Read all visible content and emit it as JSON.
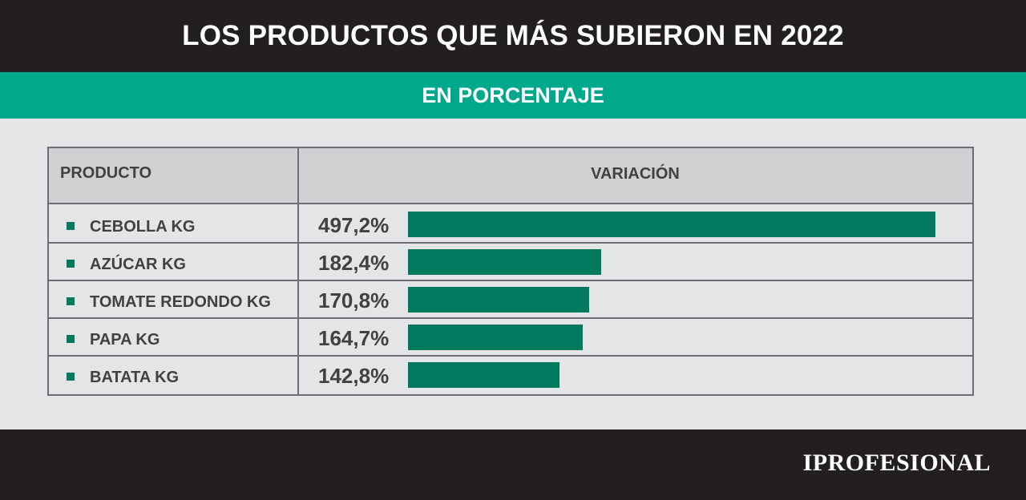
{
  "header": {
    "title": "LOS PRODUCTOS QUE MÁS SUBIERON EN 2022",
    "subtitle": "EN PORCENTAJE"
  },
  "table": {
    "col_product": "PRODUCTO",
    "col_variation": "VARIACIÓN"
  },
  "chart_data": {
    "type": "bar",
    "orientation": "horizontal",
    "title": "LOS PRODUCTOS QUE MÁS SUBIERON EN 2022",
    "subtitle": "EN PORCENTAJE",
    "categories": [
      "CEBOLLA KG",
      "AZÚCAR KG",
      "TOMATE REDONDO KG",
      "PAPA KG",
      "BATATA KG"
    ],
    "values": [
      497.2,
      182.4,
      170.8,
      164.7,
      142.8
    ],
    "value_labels": [
      "497,2%",
      "182,4%",
      "170,8%",
      "164,7%",
      "142,8%"
    ],
    "xlim": [
      0,
      497.2
    ],
    "grid": false
  },
  "footer": {
    "brand": "IPROFESIONAL"
  },
  "colors": {
    "header_bg": "#231f20",
    "accent": "#00a88c",
    "bar": "#007a5e",
    "background": "#e4e5e6"
  }
}
